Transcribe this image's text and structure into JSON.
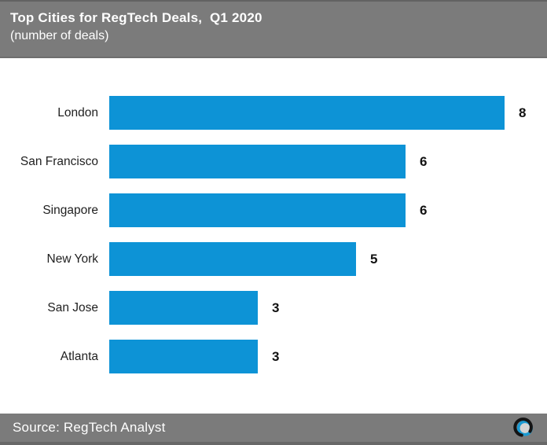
{
  "header": {
    "title": "Top Cities for RegTech Deals,  Q1 2020",
    "subtitle": "(number of deals)"
  },
  "footer": {
    "source": "Source: RegTech Analyst",
    "logo": "regtech-analyst-logo"
  },
  "colors": {
    "bar": "#0d93d6",
    "band": "#7b7b7b",
    "logo_blue": "#1b9ad2",
    "logo_black": "#141414",
    "logo_center": "#d4d4d4"
  },
  "chart_data": {
    "type": "bar",
    "orientation": "horizontal",
    "title": "Top Cities for RegTech Deals, Q1 2020",
    "subtitle": "(number of deals)",
    "xlabel": "number of deals",
    "ylabel": "",
    "categories": [
      "London",
      "San Francisco",
      "Singapore",
      "New York",
      "San Jose",
      "Atlanta"
    ],
    "values": [
      8,
      6,
      6,
      5,
      3,
      3
    ],
    "xlim": [
      0,
      8.6
    ],
    "grid": false,
    "data_labels": true,
    "legend": false,
    "bar_color": "#0d93d6"
  }
}
